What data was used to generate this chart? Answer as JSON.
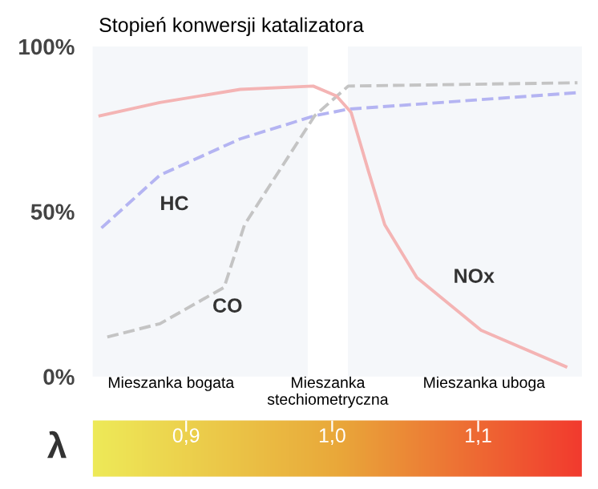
{
  "chart_data": {
    "type": "line",
    "title": "Stopień konwersji katalizatora",
    "xlabel": "λ",
    "xlim": [
      0.836,
      1.171
    ],
    "xticks": [
      {
        "value": 0.9,
        "label": "0,9"
      },
      {
        "value": 1.0,
        "label": "1,0"
      },
      {
        "value": 1.1,
        "label": "1,1"
      }
    ],
    "ylim": [
      0,
      100
    ],
    "yticks": [
      {
        "value": 0,
        "label": "0%"
      },
      {
        "value": 50,
        "label": "50%"
      },
      {
        "value": 100,
        "label": "100%"
      }
    ],
    "grid": false,
    "legend": false,
    "series": [
      {
        "name": "HC",
        "color": "#b4b4f2",
        "line_style": "dashed",
        "x": [
          0.842,
          0.882,
          0.937,
          0.988,
          1.011,
          1.168
        ],
        "values": [
          45,
          61,
          72,
          79,
          81,
          86
        ]
      },
      {
        "name": "CO",
        "color": "#c4c4c4",
        "line_style": "dashed",
        "x": [
          0.846,
          0.882,
          0.926,
          0.94,
          0.988,
          1.011,
          1.168
        ],
        "values": [
          12,
          16,
          27,
          46,
          79,
          88,
          89
        ]
      },
      {
        "name": "NOx",
        "color": "#f4b4b4",
        "line_style": "solid",
        "x": [
          0.841,
          0.882,
          0.937,
          0.987,
          1.003,
          1.013,
          1.025,
          1.036,
          1.058,
          1.102,
          1.16
        ],
        "values": [
          79,
          83,
          87,
          88,
          85,
          80,
          62,
          46,
          30,
          14,
          3
        ]
      }
    ],
    "bands": [
      {
        "axis": "x",
        "from": 0.984,
        "to": 1.01,
        "label": "Mieszanka\nstechiometryczna",
        "color": "#ffffff"
      }
    ],
    "annotations": [
      "Mieszanka bogata",
      "Mieszanka uboga"
    ]
  }
}
